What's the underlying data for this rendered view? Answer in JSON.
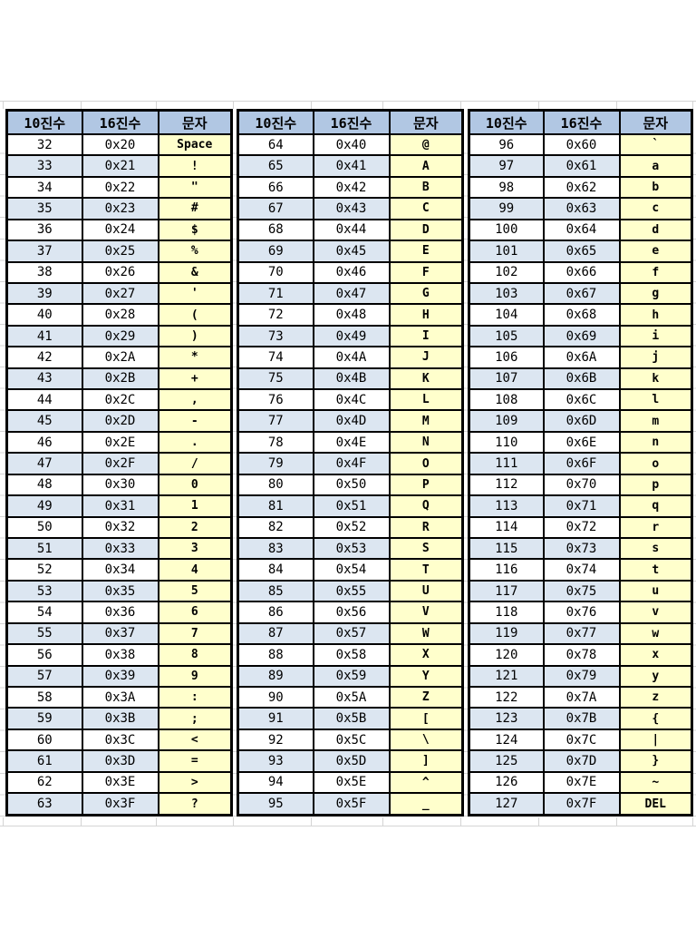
{
  "table_columns": [
    "10진수",
    "16진수",
    "문자"
  ],
  "colors": {
    "header_bg": "#b1c7e3",
    "row_alt_bg": "#dce6f1",
    "row_bg": "#ffffff",
    "char_col_bg": "#ffffcc",
    "border": "#000000",
    "gridline": "#d4d4d4"
  },
  "tables": [
    {
      "name": "ascii-32-63",
      "rows": [
        [
          "32",
          "0x20",
          "Space"
        ],
        [
          "33",
          "0x21",
          "!"
        ],
        [
          "34",
          "0x22",
          "\""
        ],
        [
          "35",
          "0x23",
          "#"
        ],
        [
          "36",
          "0x24",
          "$"
        ],
        [
          "37",
          "0x25",
          "%"
        ],
        [
          "38",
          "0x26",
          "&"
        ],
        [
          "39",
          "0x27",
          "'"
        ],
        [
          "40",
          "0x28",
          "("
        ],
        [
          "41",
          "0x29",
          ")"
        ],
        [
          "42",
          "0x2A",
          "*"
        ],
        [
          "43",
          "0x2B",
          "+"
        ],
        [
          "44",
          "0x2C",
          ","
        ],
        [
          "45",
          "0x2D",
          "-"
        ],
        [
          "46",
          "0x2E",
          "."
        ],
        [
          "47",
          "0x2F",
          "/"
        ],
        [
          "48",
          "0x30",
          "0"
        ],
        [
          "49",
          "0x31",
          "1"
        ],
        [
          "50",
          "0x32",
          "2"
        ],
        [
          "51",
          "0x33",
          "3"
        ],
        [
          "52",
          "0x34",
          "4"
        ],
        [
          "53",
          "0x35",
          "5"
        ],
        [
          "54",
          "0x36",
          "6"
        ],
        [
          "55",
          "0x37",
          "7"
        ],
        [
          "56",
          "0x38",
          "8"
        ],
        [
          "57",
          "0x39",
          "9"
        ],
        [
          "58",
          "0x3A",
          ":"
        ],
        [
          "59",
          "0x3B",
          ";"
        ],
        [
          "60",
          "0x3C",
          "<"
        ],
        [
          "61",
          "0x3D",
          "="
        ],
        [
          "62",
          "0x3E",
          ">"
        ],
        [
          "63",
          "0x3F",
          "?"
        ]
      ]
    },
    {
      "name": "ascii-64-95",
      "rows": [
        [
          "64",
          "0x40",
          "@"
        ],
        [
          "65",
          "0x41",
          "A"
        ],
        [
          "66",
          "0x42",
          "B"
        ],
        [
          "67",
          "0x43",
          "C"
        ],
        [
          "68",
          "0x44",
          "D"
        ],
        [
          "69",
          "0x45",
          "E"
        ],
        [
          "70",
          "0x46",
          "F"
        ],
        [
          "71",
          "0x47",
          "G"
        ],
        [
          "72",
          "0x48",
          "H"
        ],
        [
          "73",
          "0x49",
          "I"
        ],
        [
          "74",
          "0x4A",
          "J"
        ],
        [
          "75",
          "0x4B",
          "K"
        ],
        [
          "76",
          "0x4C",
          "L"
        ],
        [
          "77",
          "0x4D",
          "M"
        ],
        [
          "78",
          "0x4E",
          "N"
        ],
        [
          "79",
          "0x4F",
          "O"
        ],
        [
          "80",
          "0x50",
          "P"
        ],
        [
          "81",
          "0x51",
          "Q"
        ],
        [
          "82",
          "0x52",
          "R"
        ],
        [
          "83",
          "0x53",
          "S"
        ],
        [
          "84",
          "0x54",
          "T"
        ],
        [
          "85",
          "0x55",
          "U"
        ],
        [
          "86",
          "0x56",
          "V"
        ],
        [
          "87",
          "0x57",
          "W"
        ],
        [
          "88",
          "0x58",
          "X"
        ],
        [
          "89",
          "0x59",
          "Y"
        ],
        [
          "90",
          "0x5A",
          "Z"
        ],
        [
          "91",
          "0x5B",
          "["
        ],
        [
          "92",
          "0x5C",
          "\\"
        ],
        [
          "93",
          "0x5D",
          "]"
        ],
        [
          "94",
          "0x5E",
          "^"
        ],
        [
          "95",
          "0x5F",
          "_"
        ]
      ]
    },
    {
      "name": "ascii-96-127",
      "rows": [
        [
          "96",
          "0x60",
          "`"
        ],
        [
          "97",
          "0x61",
          "a"
        ],
        [
          "98",
          "0x62",
          "b"
        ],
        [
          "99",
          "0x63",
          "c"
        ],
        [
          "100",
          "0x64",
          "d"
        ],
        [
          "101",
          "0x65",
          "e"
        ],
        [
          "102",
          "0x66",
          "f"
        ],
        [
          "103",
          "0x67",
          "g"
        ],
        [
          "104",
          "0x68",
          "h"
        ],
        [
          "105",
          "0x69",
          "i"
        ],
        [
          "106",
          "0x6A",
          "j"
        ],
        [
          "107",
          "0x6B",
          "k"
        ],
        [
          "108",
          "0x6C",
          "l"
        ],
        [
          "109",
          "0x6D",
          "m"
        ],
        [
          "110",
          "0x6E",
          "n"
        ],
        [
          "111",
          "0x6F",
          "o"
        ],
        [
          "112",
          "0x70",
          "p"
        ],
        [
          "113",
          "0x71",
          "q"
        ],
        [
          "114",
          "0x72",
          "r"
        ],
        [
          "115",
          "0x73",
          "s"
        ],
        [
          "116",
          "0x74",
          "t"
        ],
        [
          "117",
          "0x75",
          "u"
        ],
        [
          "118",
          "0x76",
          "v"
        ],
        [
          "119",
          "0x77",
          "w"
        ],
        [
          "120",
          "0x78",
          "x"
        ],
        [
          "121",
          "0x79",
          "y"
        ],
        [
          "122",
          "0x7A",
          "z"
        ],
        [
          "123",
          "0x7B",
          "{"
        ],
        [
          "124",
          "0x7C",
          "|"
        ],
        [
          "125",
          "0x7D",
          "}"
        ],
        [
          "126",
          "0x7E",
          "~"
        ],
        [
          "127",
          "0x7F",
          "DEL"
        ]
      ]
    }
  ]
}
